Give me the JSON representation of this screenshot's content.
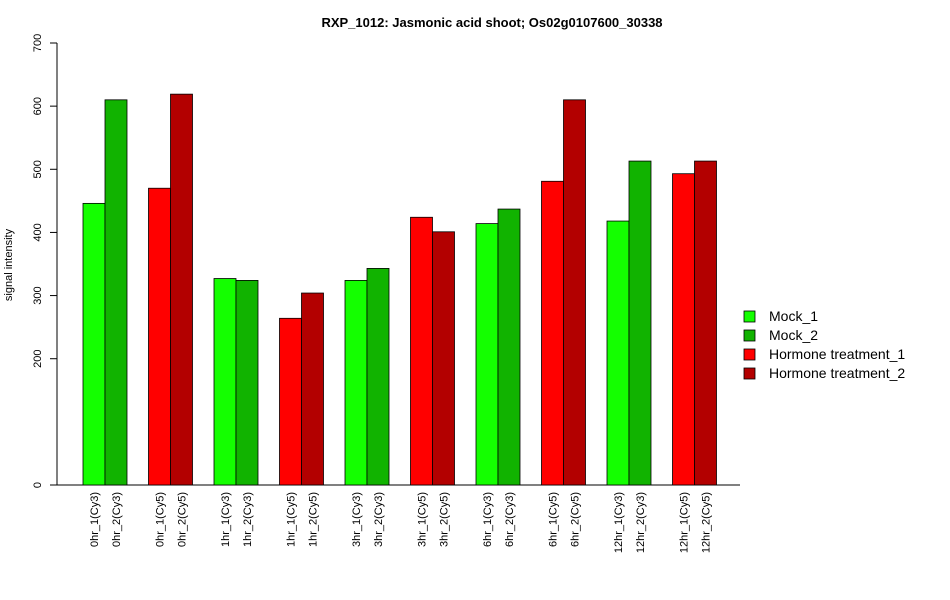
{
  "chart_data": {
    "type": "bar",
    "title": "RXP_1012: Jasmonic acid shoot; Os02g0107600_30338",
    "ylabel": "signal intensity",
    "xlabel": "",
    "ylim": [
      0,
      700
    ],
    "yticks": [
      0,
      200,
      300,
      400,
      500,
      600,
      700
    ],
    "groups": [
      {
        "labels": [
          "0hr_1(Cy3)",
          "0hr_2(Cy3)"
        ],
        "values": [
          446,
          610
        ],
        "series": [
          "Mock_1",
          "Mock_2"
        ]
      },
      {
        "labels": [
          "0hr_1(Cy5)",
          "0hr_2(Cy5)"
        ],
        "values": [
          470,
          619
        ],
        "series": [
          "Hormone treatment_1",
          "Hormone treatment_2"
        ]
      },
      {
        "labels": [
          "1hr_1(Cy3)",
          "1hr_2(Cy3)"
        ],
        "values": [
          327,
          324
        ],
        "series": [
          "Mock_1",
          "Mock_2"
        ]
      },
      {
        "labels": [
          "1hr_1(Cy5)",
          "1hr_2(Cy5)"
        ],
        "values": [
          264,
          304
        ],
        "series": [
          "Hormone treatment_1",
          "Hormone treatment_2"
        ]
      },
      {
        "labels": [
          "3hr_1(Cy3)",
          "3hr_2(Cy3)"
        ],
        "values": [
          324,
          343
        ],
        "series": [
          "Mock_1",
          "Mock_2"
        ]
      },
      {
        "labels": [
          "3hr_1(Cy5)",
          "3hr_2(Cy5)"
        ],
        "values": [
          424,
          401
        ],
        "series": [
          "Hormone treatment_1",
          "Hormone treatment_2"
        ]
      },
      {
        "labels": [
          "6hr_1(Cy3)",
          "6hr_2(Cy3)"
        ],
        "values": [
          414,
          437
        ],
        "series": [
          "Mock_1",
          "Mock_2"
        ]
      },
      {
        "labels": [
          "6hr_1(Cy5)",
          "6hr_2(Cy5)"
        ],
        "values": [
          481,
          610
        ],
        "series": [
          "Hormone treatment_1",
          "Hormone treatment_2"
        ]
      },
      {
        "labels": [
          "12hr_1(Cy3)",
          "12hr_2(Cy3)"
        ],
        "values": [
          418,
          513
        ],
        "series": [
          "Mock_1",
          "Mock_2"
        ]
      },
      {
        "labels": [
          "12hr_1(Cy5)",
          "12hr_2(Cy5)"
        ],
        "values": [
          493,
          513
        ],
        "series": [
          "Hormone treatment_1",
          "Hormone treatment_2"
        ]
      }
    ],
    "legend": {
      "position": "right",
      "entries": [
        {
          "name": "Mock_1",
          "color": "#14ff00"
        },
        {
          "name": "Mock_2",
          "color": "#11b300"
        },
        {
          "name": "Hormone treatment_1",
          "color": "#ff0000"
        },
        {
          "name": "Hormone treatment_2",
          "color": "#b30000"
        }
      ]
    },
    "grid": false
  }
}
